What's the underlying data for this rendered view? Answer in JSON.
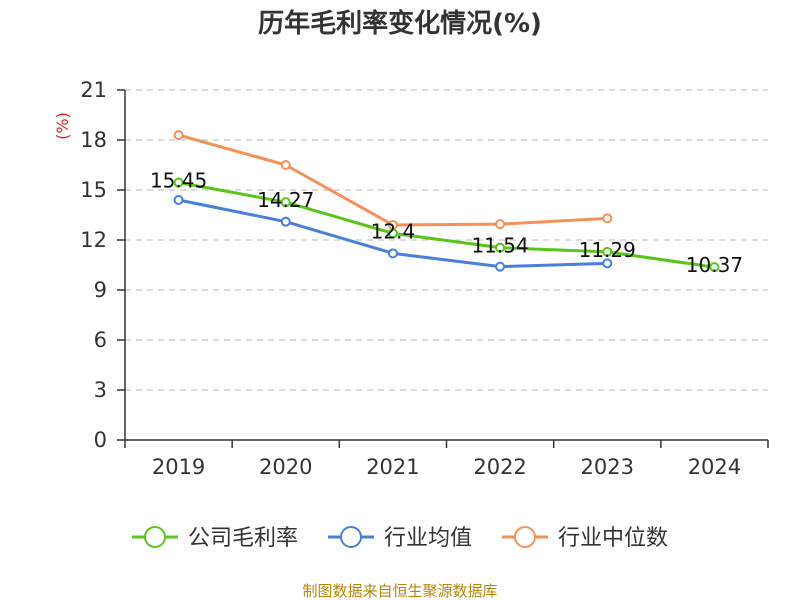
{
  "chart_data": {
    "type": "line",
    "title": "历年毛利率变化情况(%)",
    "ylabel": "(%)",
    "xlabel": "",
    "categories": [
      "2019",
      "2020",
      "2021",
      "2022",
      "2023",
      "2024"
    ],
    "ylim": [
      0,
      21
    ],
    "yticks": [
      0,
      3,
      6,
      9,
      12,
      15,
      18,
      21
    ],
    "grid": true,
    "legend_position": "bottom",
    "series": [
      {
        "name": "公司毛利率",
        "color": "#5cc41a",
        "values": [
          15.45,
          14.27,
          12.4,
          11.54,
          11.29,
          10.37
        ],
        "labels": [
          "15.45",
          "14.27",
          "12.4",
          "11.54",
          "11.29",
          "10.37"
        ]
      },
      {
        "name": "行业均值",
        "color": "#4a7fdb",
        "values": [
          14.4,
          13.1,
          11.2,
          10.4,
          10.6,
          null
        ]
      },
      {
        "name": "行业中位数",
        "color": "#f4925a",
        "values": [
          18.3,
          16.5,
          12.9,
          12.95,
          13.3,
          null
        ]
      }
    ],
    "source": "制图数据来自恒生聚源数据库"
  }
}
